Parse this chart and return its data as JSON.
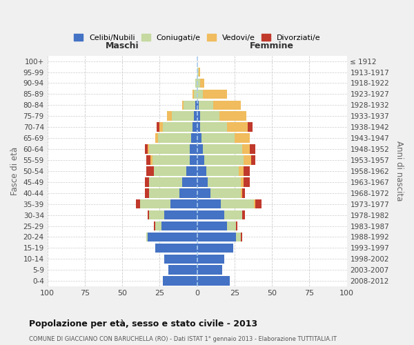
{
  "age_groups": [
    "0-4",
    "5-9",
    "10-14",
    "15-19",
    "20-24",
    "25-29",
    "30-34",
    "35-39",
    "40-44",
    "45-49",
    "50-54",
    "55-59",
    "60-64",
    "65-69",
    "70-74",
    "75-79",
    "80-84",
    "85-89",
    "90-94",
    "95-99",
    "100+"
  ],
  "birth_years": [
    "2008-2012",
    "2003-2007",
    "1998-2002",
    "1993-1997",
    "1988-1992",
    "1983-1987",
    "1978-1982",
    "1973-1977",
    "1968-1972",
    "1963-1967",
    "1958-1962",
    "1953-1957",
    "1948-1952",
    "1943-1947",
    "1938-1942",
    "1933-1937",
    "1928-1932",
    "1923-1927",
    "1918-1922",
    "1913-1917",
    "≤ 1912"
  ],
  "maschi": {
    "celibi": [
      23,
      19,
      22,
      28,
      33,
      24,
      22,
      18,
      12,
      10,
      7,
      5,
      5,
      4,
      3,
      2,
      1,
      0,
      0,
      0,
      0
    ],
    "coniugati": [
      0,
      0,
      0,
      0,
      1,
      4,
      10,
      20,
      20,
      22,
      22,
      25,
      27,
      22,
      20,
      15,
      8,
      2,
      1,
      0,
      0
    ],
    "vedovi": [
      0,
      0,
      0,
      0,
      0,
      0,
      0,
      0,
      0,
      0,
      0,
      1,
      1,
      2,
      2,
      3,
      1,
      1,
      0,
      0,
      0
    ],
    "divorziati": [
      0,
      0,
      0,
      0,
      0,
      1,
      1,
      3,
      3,
      3,
      5,
      3,
      2,
      0,
      2,
      0,
      0,
      0,
      0,
      0,
      0
    ]
  },
  "femmine": {
    "nubili": [
      22,
      17,
      18,
      24,
      26,
      20,
      18,
      16,
      9,
      7,
      6,
      5,
      4,
      3,
      2,
      2,
      1,
      0,
      0,
      0,
      0
    ],
    "coniugate": [
      0,
      0,
      0,
      0,
      3,
      6,
      12,
      22,
      20,
      22,
      22,
      26,
      26,
      22,
      18,
      13,
      10,
      4,
      2,
      1,
      0
    ],
    "vedove": [
      0,
      0,
      0,
      0,
      0,
      0,
      0,
      1,
      1,
      2,
      3,
      5,
      5,
      10,
      14,
      18,
      18,
      16,
      3,
      1,
      0
    ],
    "divorziate": [
      0,
      0,
      0,
      0,
      1,
      1,
      2,
      4,
      2,
      4,
      4,
      3,
      4,
      0,
      3,
      0,
      0,
      0,
      0,
      0,
      0
    ]
  },
  "colors": {
    "celibi_nubili": "#4472c4",
    "coniugati": "#c5d9a0",
    "vedovi": "#f0bc5e",
    "divorziati": "#c0392b"
  },
  "xlim": 100,
  "xtick_step": 25,
  "title": "Popolazione per età, sesso e stato civile - 2013",
  "subtitle": "COMUNE DI GIACCIANO CON BARUCHELLA (RO) - Dati ISTAT 1° gennaio 2013 - Elaborazione TUTTITALIA.IT",
  "xlabel_left": "Maschi",
  "xlabel_right": "Femmine",
  "ylabel_left": "Fasce di età",
  "ylabel_right": "Anni di nascita",
  "legend_labels": [
    "Celibi/Nubili",
    "Coniugati/e",
    "Vedovi/e",
    "Divorziati/e"
  ],
  "bg_color": "#f0f0f0",
  "plot_bg": "#ffffff"
}
